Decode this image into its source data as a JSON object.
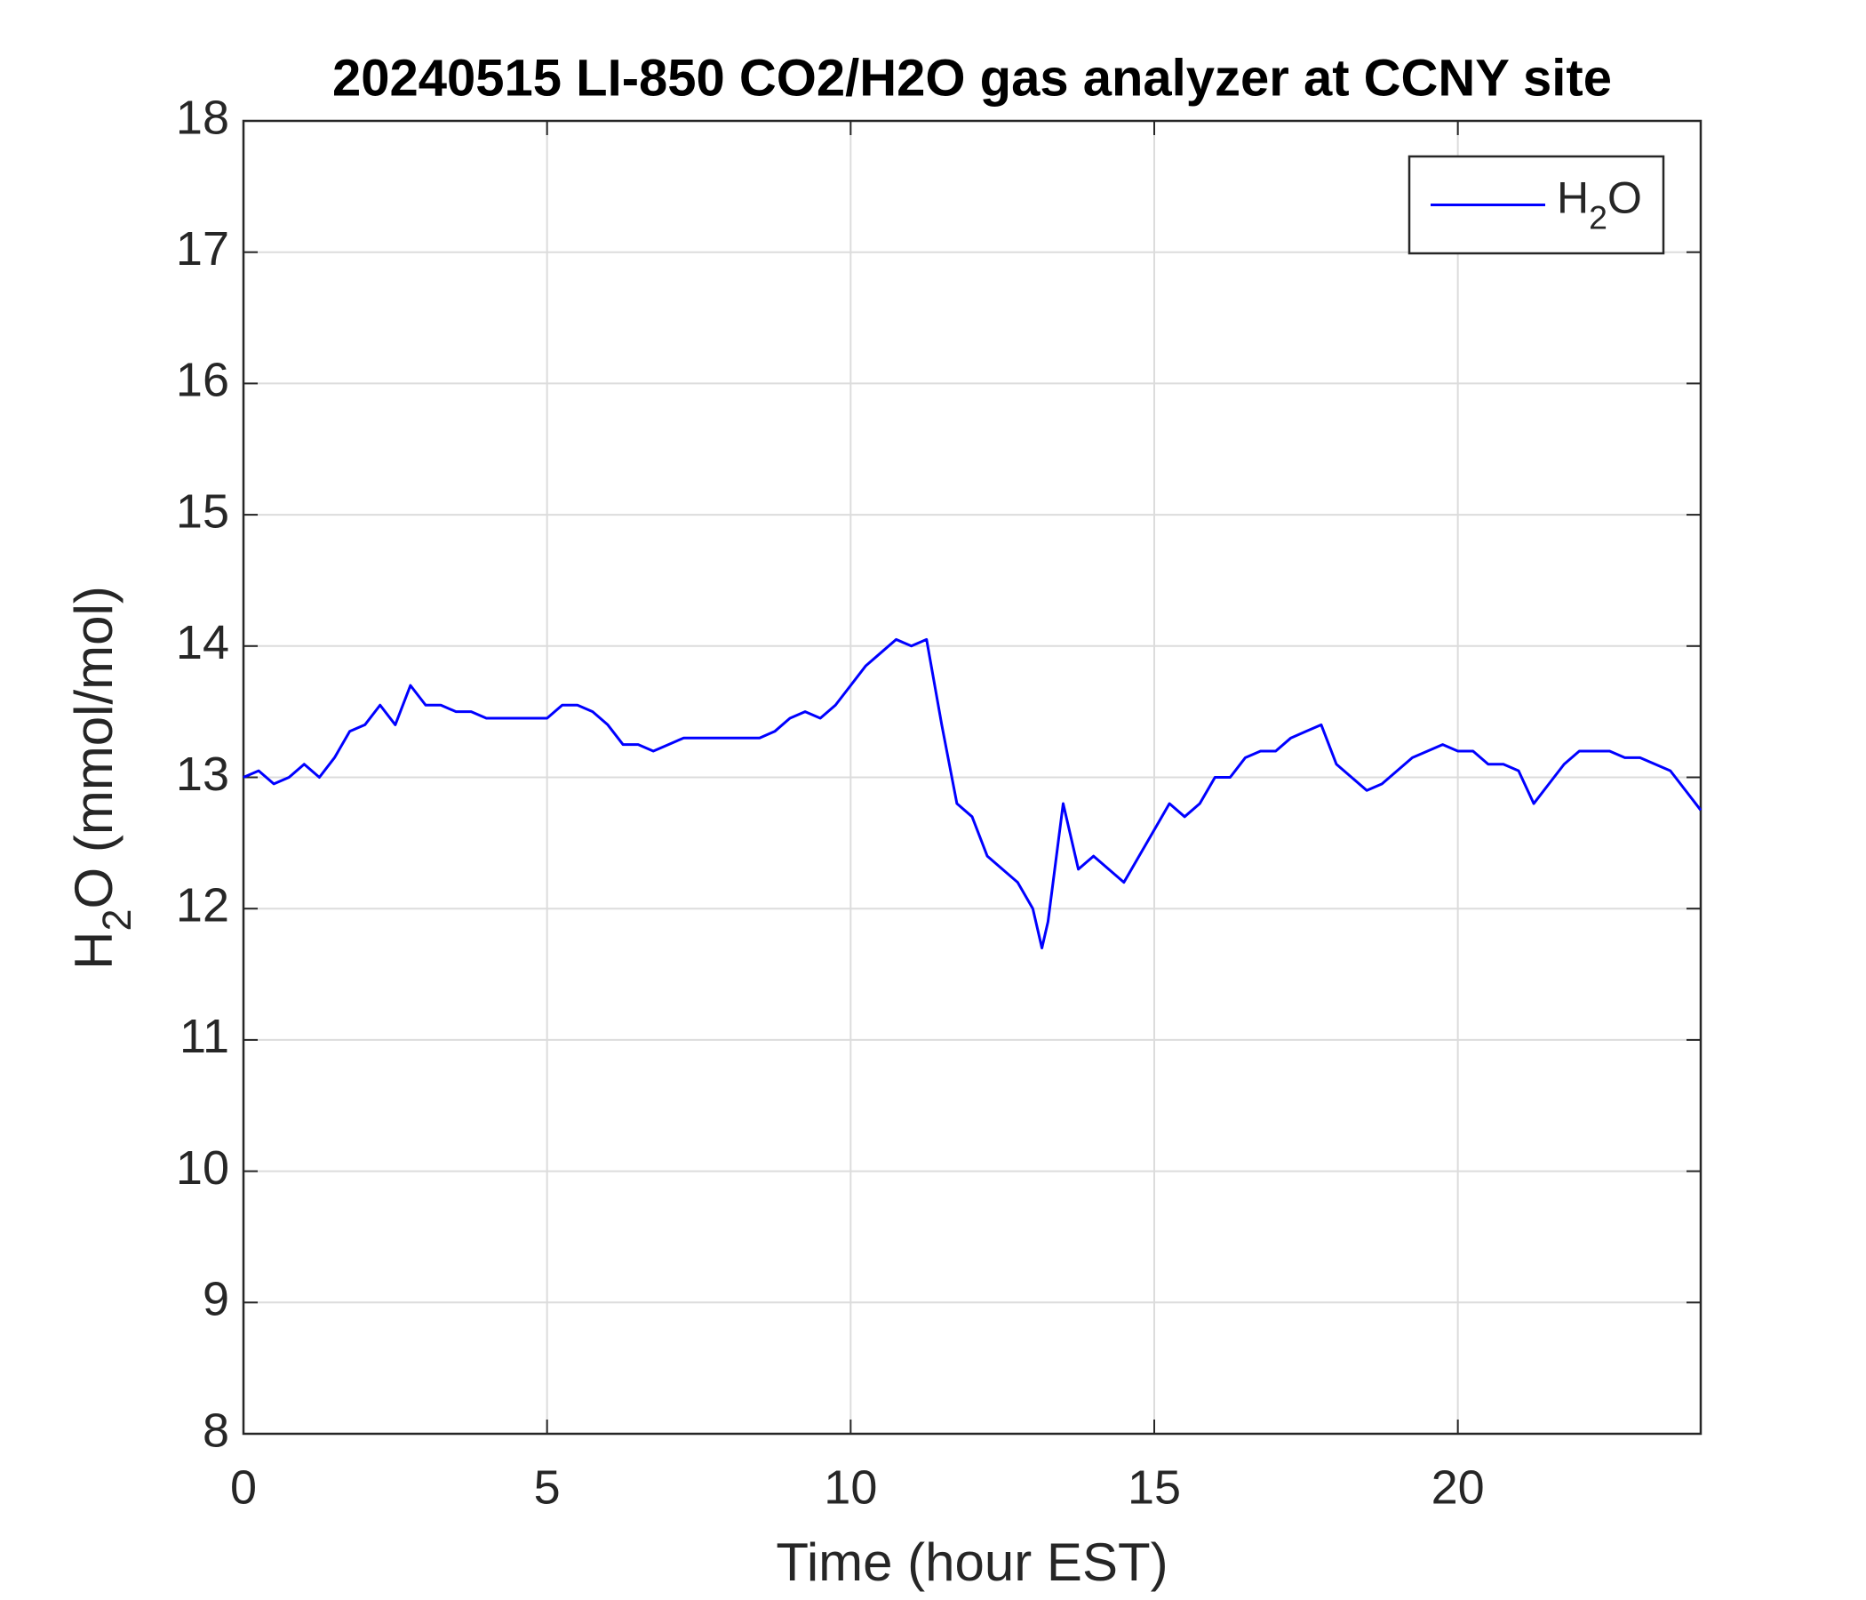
{
  "chart_data": {
    "type": "line",
    "title": "20240515 LI-850 CO2/H2O gas analyzer at CCNY site",
    "xlabel": "Time (hour EST)",
    "ylabel": "H2O (mmol/mol)",
    "x": [
      0,
      0.25,
      0.5,
      0.75,
      1,
      1.25,
      1.5,
      1.75,
      2,
      2.25,
      2.5,
      2.75,
      3,
      3.25,
      3.5,
      3.75,
      4,
      4.25,
      4.5,
      4.75,
      5,
      5.25,
      5.5,
      5.75,
      6,
      6.25,
      6.5,
      6.75,
      7,
      7.25,
      7.5,
      7.75,
      8,
      8.25,
      8.5,
      8.75,
      9,
      9.25,
      9.5,
      9.75,
      10,
      10.25,
      10.5,
      10.75,
      11,
      11.25,
      11.5,
      11.75,
      12,
      12.25,
      12.5,
      12.75,
      13,
      13.15,
      13.25,
      13.5,
      13.75,
      14,
      14.25,
      14.5,
      14.75,
      15,
      15.25,
      15.5,
      15.75,
      16,
      16.25,
      16.5,
      16.75,
      17,
      17.25,
      17.5,
      17.75,
      18,
      18.25,
      18.5,
      18.75,
      19,
      19.25,
      19.5,
      19.75,
      20,
      20.25,
      20.5,
      20.75,
      21,
      21.25,
      21.5,
      21.75,
      22,
      22.25,
      22.5,
      22.75,
      23,
      23.25,
      23.5,
      23.75,
      24
    ],
    "series": [
      {
        "name": "H2O",
        "color": "#0000ff",
        "values": [
          13.0,
          13.05,
          12.95,
          13.0,
          13.1,
          13.0,
          13.15,
          13.35,
          13.4,
          13.55,
          13.4,
          13.7,
          13.55,
          13.55,
          13.5,
          13.5,
          13.45,
          13.45,
          13.45,
          13.45,
          13.45,
          13.55,
          13.55,
          13.5,
          13.4,
          13.25,
          13.25,
          13.2,
          13.25,
          13.3,
          13.3,
          13.3,
          13.3,
          13.3,
          13.3,
          13.35,
          13.45,
          13.5,
          13.45,
          13.55,
          13.7,
          13.85,
          13.95,
          14.05,
          14.0,
          14.05,
          13.4,
          12.8,
          12.7,
          12.4,
          12.3,
          12.2,
          12.0,
          11.7,
          11.9,
          12.8,
          12.3,
          12.4,
          12.3,
          12.2,
          12.4,
          12.6,
          12.8,
          12.7,
          12.8,
          13.0,
          13.0,
          13.15,
          13.2,
          13.2,
          13.3,
          13.35,
          13.4,
          13.1,
          13.0,
          12.9,
          12.95,
          13.05,
          13.15,
          13.2,
          13.25,
          13.2,
          13.2,
          13.1,
          13.1,
          13.05,
          12.8,
          12.95,
          13.1,
          13.2,
          13.2,
          13.2,
          13.15,
          13.15,
          13.1,
          13.05,
          12.9,
          12.75
        ]
      }
    ],
    "xlim": [
      0,
      24
    ],
    "xticks": [
      0,
      5,
      10,
      15,
      20
    ],
    "ylim": [
      8,
      18
    ],
    "yticks": [
      8,
      9,
      10,
      11,
      12,
      13,
      14,
      15,
      16,
      17,
      18
    ],
    "grid": true,
    "legend": "upper right"
  }
}
